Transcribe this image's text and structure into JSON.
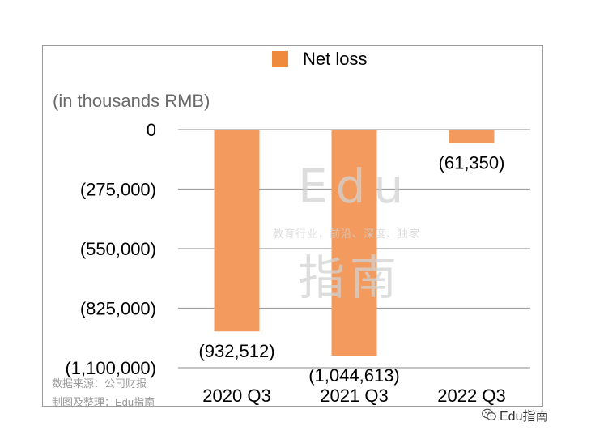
{
  "chart_data": {
    "type": "bar",
    "categories": [
      "2020 Q3",
      "2021 Q3",
      "2022 Q3"
    ],
    "series": [
      {
        "name": "Net loss",
        "values": [
          -932512,
          -1044613,
          -61350
        ],
        "data_labels": [
          "(932,512)",
          "(1,044,613)",
          "(61,350)"
        ]
      }
    ],
    "ylabel": "(in thousands RMB)",
    "ylim": [
      -1100000,
      0
    ],
    "yticks": [
      0,
      -275000,
      -550000,
      -825000,
      -1100000
    ],
    "ytick_labels": [
      "0",
      "(275,000)",
      "(550,000)",
      "(825,000)",
      "(1,100,000)"
    ],
    "legend_position": "top",
    "grid": true,
    "bar_color": "#f39b5e",
    "legend_color": "#ef8a3d",
    "grid_color": "#a0a0a0"
  },
  "watermark": {
    "logo_top": "Edu",
    "slogan": "教育行业，前沿、深度、独家",
    "logo_bottom": "指南"
  },
  "source": {
    "line1": "数据来源：公司财报",
    "line2": "制图及整理：Edu指南"
  },
  "wechat": {
    "label": "Edu指南",
    "icon": "wechat-icon"
  }
}
